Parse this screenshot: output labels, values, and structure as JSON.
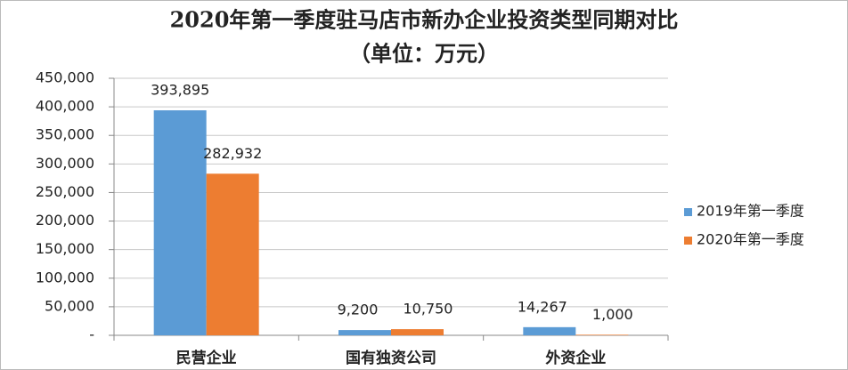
{
  "chart_data": {
    "type": "bar",
    "title": "2020年第一季度驻马店市新办企业投资类型同期对比",
    "subtitle": "（单位：万元）",
    "categories": [
      "民营企业",
      "国有独资公司",
      "外资企业"
    ],
    "series": [
      {
        "name": "2019年第一季度",
        "color": "#5b9bd5",
        "values": [
          393895,
          9200,
          14267
        ],
        "value_labels": [
          "393,895",
          "9,200",
          "14,267"
        ]
      },
      {
        "name": "2020年第一季度",
        "color": "#ed7d31",
        "values": [
          282932,
          10750,
          1000
        ],
        "value_labels": [
          "282,932",
          "10,750",
          "1,000"
        ]
      }
    ],
    "ylim": [
      0,
      450000
    ],
    "yticks": [
      {
        "value": 0,
        "label": "-"
      },
      {
        "value": 50000,
        "label": "50,000"
      },
      {
        "value": 100000,
        "label": "100,000"
      },
      {
        "value": 150000,
        "label": "150,000"
      },
      {
        "value": 200000,
        "label": "200,000"
      },
      {
        "value": 250000,
        "label": "250,000"
      },
      {
        "value": 300000,
        "label": "300,000"
      },
      {
        "value": 350000,
        "label": "350,000"
      },
      {
        "value": 400000,
        "label": "400,000"
      },
      {
        "value": 450000,
        "label": "450,000"
      }
    ],
    "grid": true,
    "legend": "right"
  }
}
